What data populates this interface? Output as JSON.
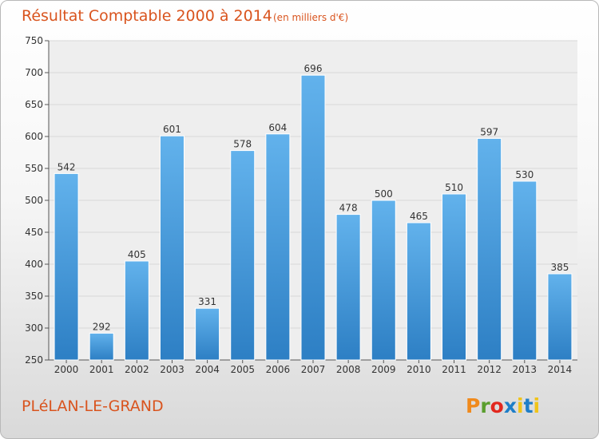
{
  "chart_data": {
    "type": "bar",
    "title": "Résultat Comptable 2000 à 2014",
    "subtitle": "(en milliers d'€)",
    "categories": [
      "2000",
      "2001",
      "2002",
      "2003",
      "2004",
      "2005",
      "2006",
      "2007",
      "2008",
      "2009",
      "2010",
      "2011",
      "2012",
      "2013",
      "2014"
    ],
    "values": [
      542,
      292,
      405,
      601,
      331,
      578,
      604,
      696,
      478,
      500,
      465,
      510,
      597,
      530,
      385
    ],
    "ylim": [
      250,
      750
    ],
    "yticks": [
      250,
      300,
      350,
      400,
      450,
      500,
      550,
      600,
      650,
      700,
      750
    ],
    "xlabel": "",
    "ylabel": "",
    "grid": true,
    "colors": {
      "bar_top": "#62b2ec",
      "bar_bottom": "#2d7fc4",
      "grid": "#d8d8d8",
      "plot_bg": "#eeeeee"
    }
  },
  "footer": {
    "commune": "PLéLAN-LE-GRAND",
    "logo": "Proxiti",
    "logo_colors": [
      "#f08a1c",
      "#5a9e2e",
      "#e2281f",
      "#1e7ec8",
      "#f0c419",
      "#1e7ec8",
      "#f0c419"
    ]
  }
}
